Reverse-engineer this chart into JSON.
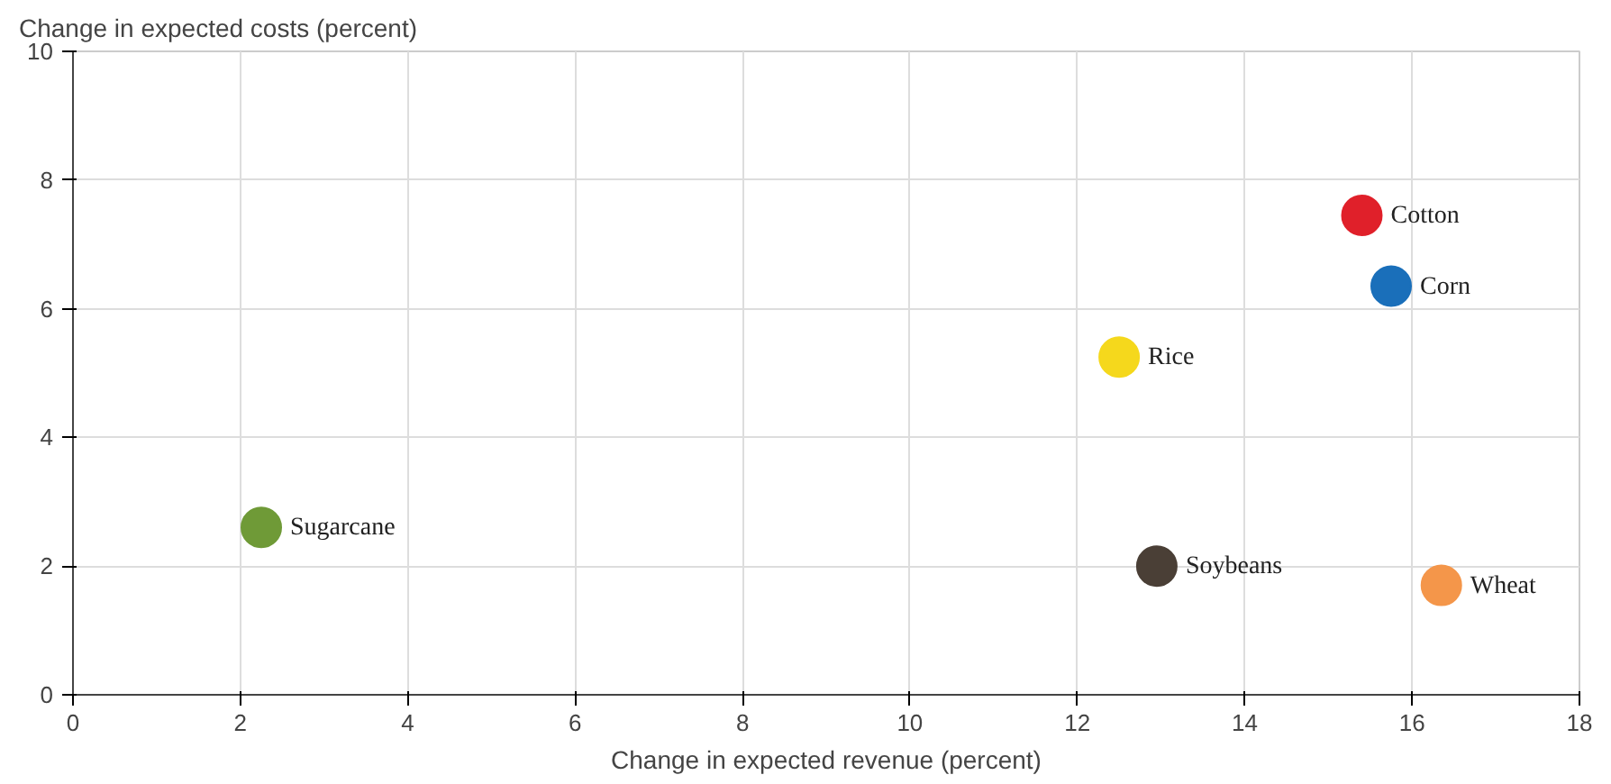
{
  "chart_data": {
    "type": "scatter",
    "xlabel": "Change in expected revenue (percent)",
    "ylabel": "Change in expected costs (percent)",
    "xlim": [
      0,
      18
    ],
    "xticks": [
      0,
      2,
      4,
      6,
      8,
      10,
      12,
      14,
      16,
      18
    ],
    "ylim": [
      0,
      10
    ],
    "yticks": [
      0,
      2,
      4,
      6,
      8,
      10
    ],
    "grid": true,
    "marker": "circle",
    "series": [
      {
        "name": "Sugarcane",
        "color": "#6f9a37",
        "x": [
          2.25
        ],
        "values": [
          2.6
        ]
      },
      {
        "name": "Rice",
        "color": "#f5d81c",
        "x": [
          12.5
        ],
        "values": [
          5.25
        ]
      },
      {
        "name": "Cotton",
        "color": "#e0202a",
        "x": [
          15.4
        ],
        "values": [
          7.45
        ]
      },
      {
        "name": "Corn",
        "color": "#1a6fba",
        "x": [
          15.75
        ],
        "values": [
          6.35
        ]
      },
      {
        "name": "Soybeans",
        "color": "#4a3f36",
        "x": [
          12.95
        ],
        "values": [
          2.0
        ]
      },
      {
        "name": "Wheat",
        "color": "#f4964a",
        "x": [
          16.35
        ],
        "values": [
          1.7
        ]
      }
    ]
  }
}
